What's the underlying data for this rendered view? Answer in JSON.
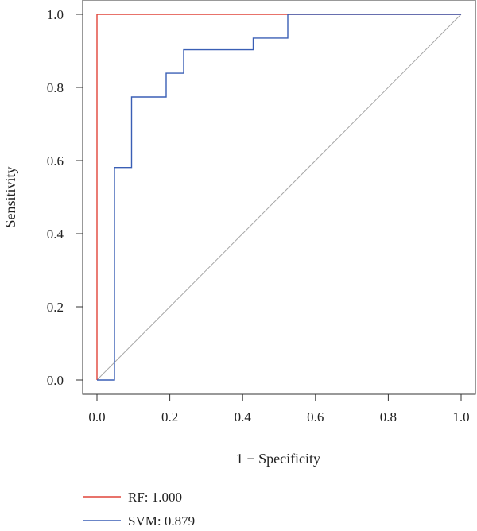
{
  "chart_data": {
    "type": "line",
    "title": "",
    "xlabel": "1 − Specificity",
    "ylabel": "Sensitivity",
    "xlim": [
      0.0,
      1.0
    ],
    "ylim": [
      0.0,
      1.0
    ],
    "x_ticks": [
      "0.0",
      "0.2",
      "0.4",
      "0.6",
      "0.8",
      "1.0"
    ],
    "y_ticks": [
      "0.0",
      "0.2",
      "0.4",
      "0.6",
      "0.8",
      "1.0"
    ],
    "grid": false,
    "legend_position": "bottom-left",
    "reference_line": {
      "x": [
        0,
        1
      ],
      "y": [
        0,
        1
      ],
      "color": "#a6a6a6"
    },
    "series": [
      {
        "name": "RF: 1.000",
        "color": "#e0453a",
        "x": [
          0.0,
          0.0,
          0.524,
          1.0
        ],
        "y": [
          0.0,
          1.0,
          1.0,
          1.0
        ]
      },
      {
        "name": "SVM: 0.879",
        "color": "#3a5fb5",
        "x": [
          0.0,
          0.048,
          0.048,
          0.095,
          0.095,
          0.19,
          0.19,
          0.238,
          0.238,
          0.429,
          0.429,
          0.524,
          0.524,
          1.0
        ],
        "y": [
          0.0,
          0.0,
          0.581,
          0.581,
          0.774,
          0.774,
          0.839,
          0.839,
          0.903,
          0.903,
          0.935,
          0.935,
          1.0,
          1.0
        ]
      }
    ]
  }
}
